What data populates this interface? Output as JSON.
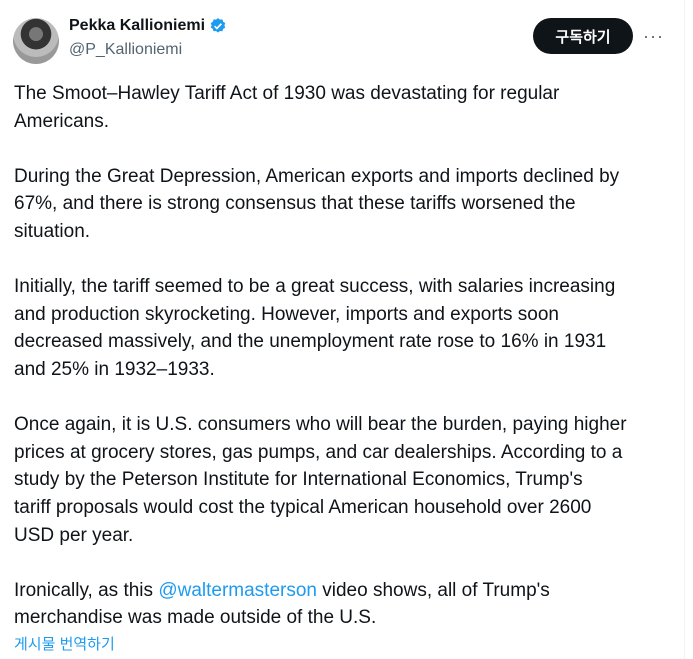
{
  "author": {
    "name": "Pekka Kallioniemi",
    "handle": "@P_Kallioniemi",
    "verified": true
  },
  "subscribe_label": "구독하기",
  "more_label": "···",
  "paragraphs": [
    {
      "lines": [
        "The Smoot–Hawley Tariff Act of 1930 was devastating for regular",
        "Americans."
      ]
    },
    {
      "lines": [
        "During the Great Depression, American exports and imports declined by",
        "67%, and there is strong consensus that these tariffs worsened the",
        "situation."
      ]
    },
    {
      "lines": [
        "Initially, the tariff seemed to be a great success, with salaries increasing",
        "and production skyrocketing. However, imports and exports soon",
        "decreased massively, and the unemployment rate rose to 16% in 1931",
        "and 25% in 1932–1933."
      ]
    },
    {
      "lines": [
        "Once again, it is U.S. consumers who will bear the burden, paying higher",
        "prices at grocery stores, gas pumps, and car dealerships. According to a",
        "study by the Peterson Institute for International Economics, Trump's",
        "tariff proposals would cost the typical American household over 2600",
        "USD per year."
      ]
    }
  ],
  "last_paragraph": {
    "before": "Ironically, as this ",
    "mention": "@waltermasterson",
    "after": " video shows, all of Trump's",
    "line2": "merchandise was made outside of the U.S."
  },
  "translate_label": "게시물 번역하기",
  "colors": {
    "accent": "#1d9bf0",
    "text": "#0f1419",
    "muted": "#536471"
  }
}
